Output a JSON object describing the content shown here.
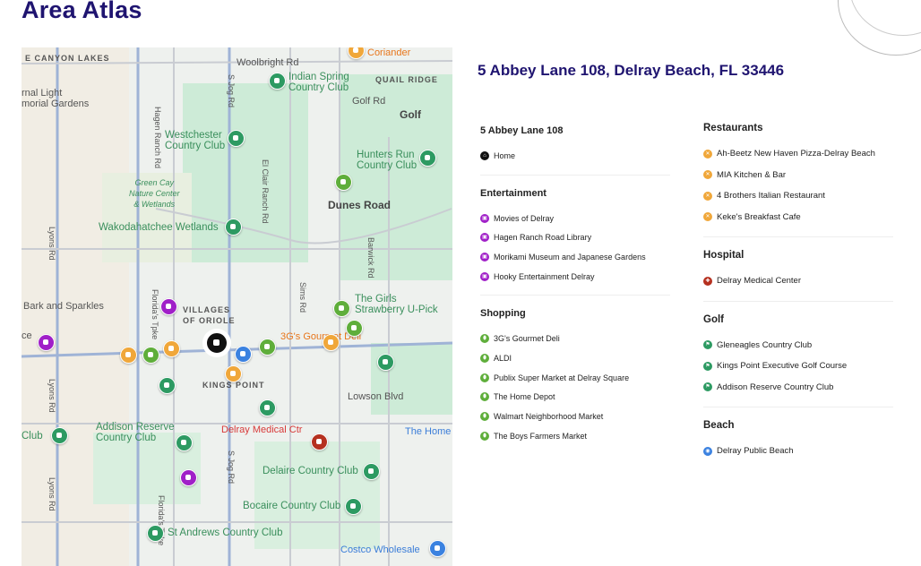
{
  "title": "Area Atlas",
  "address": "5 Abbey Lane 108, Delray Beach, FL 33446",
  "colors": {
    "brand": "#1f1470",
    "home": "#111111",
    "entertainment": "#a020c8",
    "shopping": "#5fae3b",
    "restaurants": "#f0a73a",
    "hospital": "#b5301f",
    "golf": "#2d9a62",
    "beach": "#3b82e0"
  },
  "map": {
    "labels": [
      {
        "t": "E CANYON LAKES",
        "c": "cap"
      },
      {
        "t": "Woolbright Rd",
        "c": ""
      },
      {
        "t": "Indian Spring\nCountry Club",
        "c": "g"
      },
      {
        "t": "QUAIL RIDGE",
        "c": "cap"
      },
      {
        "t": "Golf Rd",
        "c": ""
      },
      {
        "t": "rnal Light\nmorial Gardens",
        "c": ""
      },
      {
        "t": "Golf",
        "c": "b"
      },
      {
        "t": "Westchester\nCountry Club",
        "c": "g"
      },
      {
        "t": "Hunters Run\nCountry Club",
        "c": "g"
      },
      {
        "t": "Green Cay\nNature Center\n& Wetlands",
        "c": "it"
      },
      {
        "t": "Dunes Road",
        "c": "b"
      },
      {
        "t": "Wakodahatchee Wetlands",
        "c": "g"
      },
      {
        "t": "Bark and Sparkles",
        "c": ""
      },
      {
        "t": "The Girls\nStrawberry U-Pick",
        "c": "g"
      },
      {
        "t": "VILLAGES\nOF ORIOLE",
        "c": "cap"
      },
      {
        "t": "3G's Gourmet Deli",
        "c": "o"
      },
      {
        "t": "KINGS POINT",
        "c": "cap"
      },
      {
        "t": "Lowson Blvd",
        "c": ""
      },
      {
        "t": "Addison Reserve\nCountry Club",
        "c": "g"
      },
      {
        "t": "Delray Medical Ctr",
        "c": "r"
      },
      {
        "t": "The Home",
        "c": "bl"
      },
      {
        "t": "Club",
        "c": "g"
      },
      {
        "t": "Delaire Country Club",
        "c": "g"
      },
      {
        "t": "Bocaire Country Club",
        "c": "g"
      },
      {
        "t": "St Andrews Country Club",
        "c": "g"
      },
      {
        "t": "Costco Wholesale",
        "c": "bl"
      },
      {
        "t": "Coriander",
        "c": "o"
      },
      {
        "t": "Lyons Rd",
        "c": "v"
      },
      {
        "t": "Hagen Ranch Rd",
        "c": "v"
      },
      {
        "t": "S Jog Rd",
        "c": "v"
      },
      {
        "t": "El Clair Ranch Rd",
        "c": "v"
      },
      {
        "t": "Sims Rd",
        "c": "v"
      },
      {
        "t": "Barwick Rd",
        "c": "v"
      },
      {
        "t": "Florida's Tpke",
        "c": "v"
      },
      {
        "t": "Lyons Rd",
        "c": "v"
      },
      {
        "t": "S Jog Rd",
        "c": "v"
      },
      {
        "t": "Lyons Rd",
        "c": "v"
      },
      {
        "t": "Florida's Tpke",
        "c": "v"
      },
      {
        "t": "ce",
        "c": ""
      }
    ]
  },
  "left_sections": [
    {
      "title": "5 Abbey Lane 108",
      "icon": "home",
      "items": [
        "Home"
      ]
    },
    {
      "title": "Entertainment",
      "icon": "entertainment",
      "items": [
        "Movies of Delray",
        "Hagen Ranch Road Library",
        "Morikami Museum and Japanese Gardens",
        "Hooky Entertainment Delray"
      ]
    },
    {
      "title": "Shopping",
      "icon": "shopping",
      "items": [
        "3G's Gourmet Deli",
        "ALDI",
        "Publix Super Market at Delray Square",
        "The Home Depot",
        "Walmart Neighborhood Market",
        "The Boys Farmers Market"
      ]
    }
  ],
  "right_sections": [
    {
      "title": "Restaurants",
      "icon": "restaurants",
      "items": [
        "Ah-Beetz New Haven Pizza-Delray Beach",
        "MIA Kitchen & Bar",
        "4 Brothers Italian Restaurant",
        "Keke's Breakfast Cafe"
      ]
    },
    {
      "title": "Hospital",
      "icon": "hospital",
      "items": [
        "Delray Medical Center"
      ]
    },
    {
      "title": "Golf",
      "icon": "golf",
      "items": [
        "Gleneagles Country Club",
        "Kings Point Executive Golf Course",
        "Addison Reserve Country Club"
      ]
    },
    {
      "title": "Beach",
      "icon": "beach",
      "items": [
        "Delray Public Beach"
      ]
    }
  ]
}
